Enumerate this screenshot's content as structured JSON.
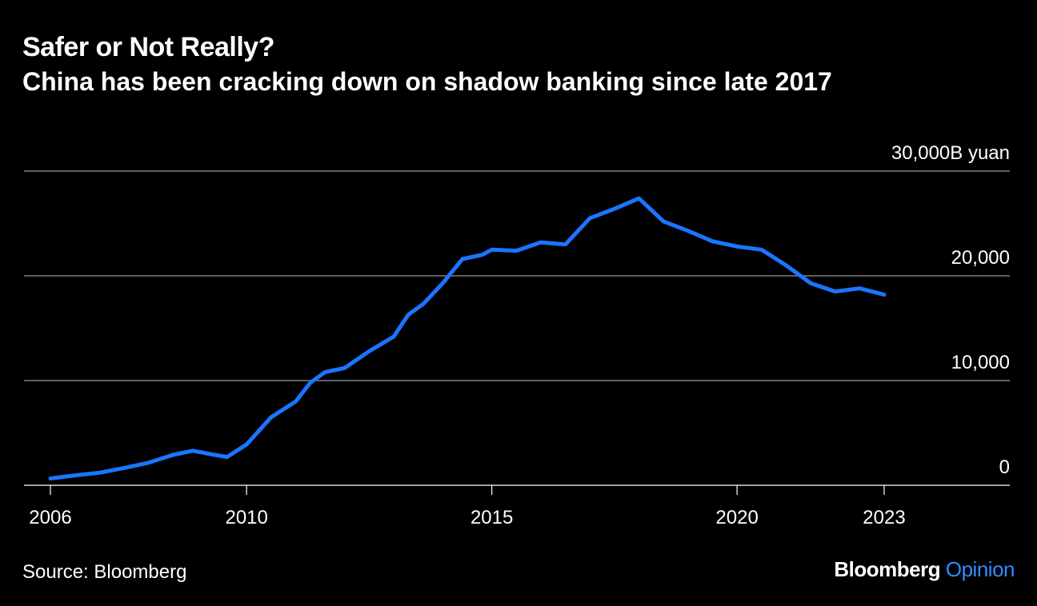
{
  "header": {
    "title": "Safer or Not Really?",
    "subtitle": "China has been cracking down on shadow banking since late 2017"
  },
  "footer": {
    "source": "Source: Bloomberg",
    "brand_name": "Bloomberg",
    "brand_suffix": "Opinion"
  },
  "colors": {
    "background": "#000000",
    "line": "#1a75ff",
    "gridline": "#808080",
    "text": "#ffffff",
    "brand_accent": "#2f8cff"
  },
  "chart_data": {
    "type": "line",
    "title": "Safer or Not Really?",
    "subtitle": "China has been cracking down on shadow banking since late 2017",
    "ylabel_unit": "B yuan",
    "ylim": [
      0,
      30000
    ],
    "xlim": [
      2005.6,
      2025.2
    ],
    "grid": true,
    "legend": "none",
    "y_ticks": [
      {
        "value": 0,
        "label": "0"
      },
      {
        "value": 10000,
        "label": "10,000"
      },
      {
        "value": 20000,
        "label": "20,000"
      },
      {
        "value": 30000,
        "label": "30,000B yuan"
      }
    ],
    "x_ticks": [
      {
        "value": 2006,
        "label": "2006"
      },
      {
        "value": 2010,
        "label": "2010"
      },
      {
        "value": 2015,
        "label": "2015"
      },
      {
        "value": 2020,
        "label": "2020"
      },
      {
        "value": 2023,
        "label": "2023"
      }
    ],
    "series": [
      {
        "values": [
          [
            2006.0,
            650
          ],
          [
            2006.5,
            950
          ],
          [
            2007.0,
            1200
          ],
          [
            2007.5,
            1650
          ],
          [
            2008.0,
            2150
          ],
          [
            2008.5,
            2900
          ],
          [
            2008.9,
            3300
          ],
          [
            2009.3,
            2950
          ],
          [
            2009.6,
            2700
          ],
          [
            2010.0,
            3900
          ],
          [
            2010.5,
            6500
          ],
          [
            2011.0,
            8000
          ],
          [
            2011.3,
            9800
          ],
          [
            2011.6,
            10800
          ],
          [
            2012.0,
            11200
          ],
          [
            2012.5,
            12800
          ],
          [
            2013.0,
            14200
          ],
          [
            2013.3,
            16300
          ],
          [
            2013.6,
            17300
          ],
          [
            2014.0,
            19300
          ],
          [
            2014.4,
            21600
          ],
          [
            2014.8,
            22000
          ],
          [
            2015.0,
            22500
          ],
          [
            2015.5,
            22400
          ],
          [
            2016.0,
            23200
          ],
          [
            2016.5,
            23000
          ],
          [
            2017.0,
            25500
          ],
          [
            2017.5,
            26400
          ],
          [
            2018.0,
            27400
          ],
          [
            2018.5,
            25200
          ],
          [
            2019.0,
            24300
          ],
          [
            2019.5,
            23300
          ],
          [
            2020.0,
            22800
          ],
          [
            2020.5,
            22500
          ],
          [
            2021.0,
            21000
          ],
          [
            2021.5,
            19300
          ],
          [
            2022.0,
            18500
          ],
          [
            2022.5,
            18800
          ],
          [
            2023.0,
            18200
          ]
        ]
      }
    ]
  }
}
